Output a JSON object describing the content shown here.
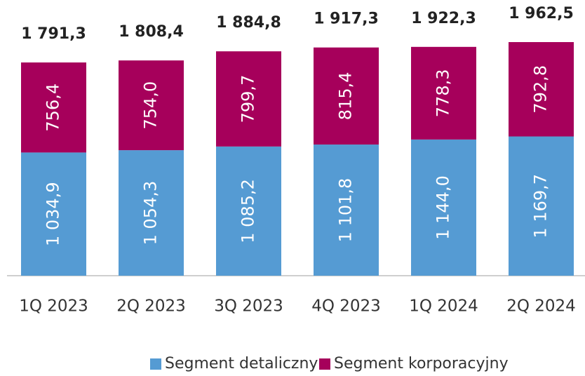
{
  "chart_data": {
    "type": "stacked_bar",
    "categories": [
      "1Q 2023",
      "2Q 2023",
      "3Q 2023",
      "4Q 2023",
      "1Q 2024",
      "2Q 2024"
    ],
    "series": [
      {
        "name": "Segment detaliczny",
        "color": "#559bd3",
        "values": [
          1034.9,
          1054.3,
          1085.2,
          1101.8,
          1144.0,
          1169.7
        ],
        "value_labels": [
          "1 034,9",
          "1 054,3",
          "1 085,2",
          "1 101,8",
          "1 144,0",
          "1 169,7"
        ]
      },
      {
        "name": "Segment korporacyjny",
        "color": "#a6005b",
        "values": [
          756.4,
          754.0,
          799.7,
          815.4,
          778.3,
          792.8
        ],
        "value_labels": [
          "756,4",
          "754,0",
          "799,7",
          "815,4",
          "778,3",
          "792,8"
        ]
      }
    ],
    "totals": [
      1791.3,
      1808.4,
      1884.8,
      1917.3,
      1922.3,
      1962.5
    ],
    "total_labels": [
      "1 791,3",
      "1 808,4",
      "1 884,8",
      "1 917,3",
      "1 922,3",
      "1 962,5"
    ]
  }
}
